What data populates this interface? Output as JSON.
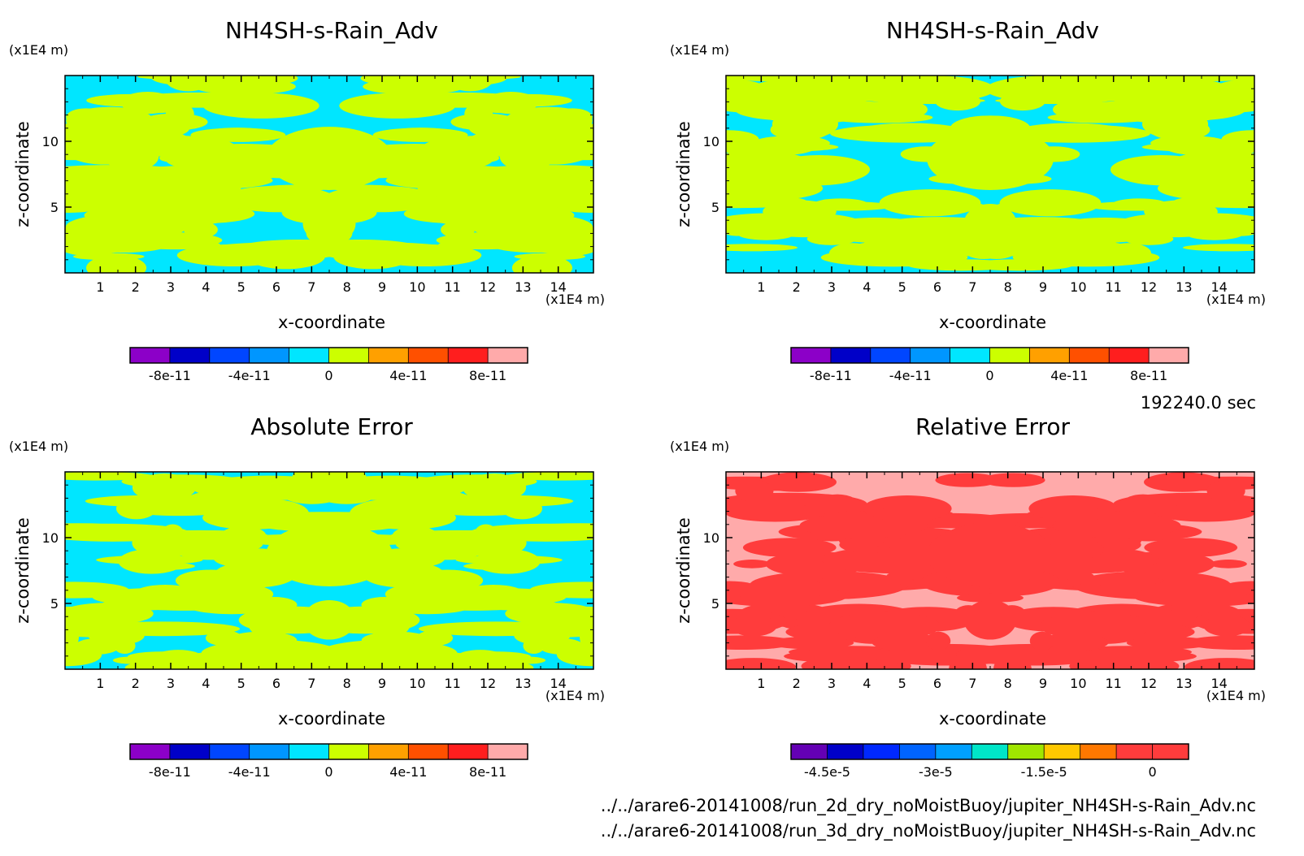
{
  "time_label": "192240.0 sec",
  "files": [
    "../../arare6-20141008/run_2d_dry_noMoistBuoy/jupiter_NH4SH-s-Rain_Adv.nc",
    "../../arare6-20141008/run_3d_dry_noMoistBuoy/jupiter_NH4SH-s-Rain_Adv.nc"
  ],
  "chart_data": [
    {
      "type": "heatmap",
      "title": "NH4SH-s-Rain_Adv",
      "xlabel": "x-coordinate",
      "ylabel": "z-coordinate",
      "x_unit": "(x1E4 m)",
      "y_unit": "(x1E4 m)",
      "xlim": [
        0,
        15
      ],
      "ylim": [
        0,
        15
      ],
      "x_ticks": [
        1,
        2,
        3,
        4,
        5,
        6,
        7,
        8,
        9,
        10,
        11,
        12,
        13,
        14
      ],
      "y_ticks": [
        5,
        10
      ],
      "field_colors": [
        "#00e6ff",
        "#ccff00"
      ],
      "colorbar": {
        "colors": [
          "#8c00c8",
          "#0000c8",
          "#0046ff",
          "#0096ff",
          "#00e6ff",
          "#ccff00",
          "#ffa000",
          "#ff5000",
          "#ff1e1e",
          "#ffaaaa"
        ],
        "tick_labels": [
          "-8e-11",
          "-4e-11",
          "0",
          "4e-11",
          "8e-11"
        ],
        "tick_positions": [
          1,
          3,
          5,
          7,
          9
        ]
      }
    },
    {
      "type": "heatmap",
      "title": "NH4SH-s-Rain_Adv",
      "xlabel": "x-coordinate",
      "ylabel": "z-coordinate",
      "x_unit": "(x1E4 m)",
      "y_unit": "(x1E4 m)",
      "xlim": [
        0,
        15
      ],
      "ylim": [
        0,
        15
      ],
      "x_ticks": [
        1,
        2,
        3,
        4,
        5,
        6,
        7,
        8,
        9,
        10,
        11,
        12,
        13,
        14
      ],
      "y_ticks": [
        5,
        10
      ],
      "field_colors": [
        "#00e6ff",
        "#ccff00"
      ],
      "colorbar": {
        "colors": [
          "#8c00c8",
          "#0000c8",
          "#0046ff",
          "#0096ff",
          "#00e6ff",
          "#ccff00",
          "#ffa000",
          "#ff5000",
          "#ff1e1e",
          "#ffaaaa"
        ],
        "tick_labels": [
          "-8e-11",
          "-4e-11",
          "0",
          "4e-11",
          "8e-11"
        ],
        "tick_positions": [
          1,
          3,
          5,
          7,
          9
        ]
      }
    },
    {
      "type": "heatmap",
      "title": "Absolute Error",
      "xlabel": "x-coordinate",
      "ylabel": "z-coordinate",
      "x_unit": "(x1E4 m)",
      "y_unit": "(x1E4 m)",
      "xlim": [
        0,
        15
      ],
      "ylim": [
        0,
        15
      ],
      "x_ticks": [
        1,
        2,
        3,
        4,
        5,
        6,
        7,
        8,
        9,
        10,
        11,
        12,
        13,
        14
      ],
      "y_ticks": [
        5,
        10
      ],
      "field_colors": [
        "#00e6ff",
        "#ccff00"
      ],
      "colorbar": {
        "colors": [
          "#8c00c8",
          "#0000c8",
          "#0046ff",
          "#0096ff",
          "#00e6ff",
          "#ccff00",
          "#ffa000",
          "#ff5000",
          "#ff1e1e",
          "#ffaaaa"
        ],
        "tick_labels": [
          "-8e-11",
          "-4e-11",
          "0",
          "4e-11",
          "8e-11"
        ],
        "tick_positions": [
          1,
          3,
          5,
          7,
          9
        ]
      }
    },
    {
      "type": "heatmap",
      "title": "Relative Error",
      "xlabel": "x-coordinate",
      "ylabel": "z-coordinate",
      "x_unit": "(x1E4 m)",
      "y_unit": "(x1E4 m)",
      "xlim": [
        0,
        15
      ],
      "ylim": [
        0,
        15
      ],
      "x_ticks": [
        1,
        2,
        3,
        4,
        5,
        6,
        7,
        8,
        9,
        10,
        11,
        12,
        13,
        14
      ],
      "y_ticks": [
        5,
        10
      ],
      "field_colors": [
        "#ffaaaa",
        "#ff3c3c"
      ],
      "colorbar": {
        "colors": [
          "#6400b4",
          "#0000c8",
          "#0028ff",
          "#0064ff",
          "#00a0ff",
          "#00e6c8",
          "#a0e600",
          "#ffc800",
          "#ff7800",
          "#ff3c3c",
          "#ff3c3c"
        ],
        "tick_labels": [
          "-4.5e-5",
          "-3e-5",
          "-1.5e-5",
          "0"
        ],
        "tick_positions": [
          1,
          4,
          7,
          10
        ]
      }
    }
  ]
}
